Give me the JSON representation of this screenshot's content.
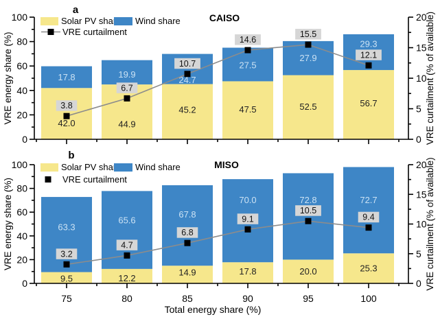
{
  "figure": {
    "panels": [
      "a",
      "b"
    ],
    "xlabel": "Total energy share (%)",
    "ylabel": "VRE energy share (%)",
    "y2label": "VRE curtailment (% of available)"
  },
  "colors": {
    "solar": "#F6E78C",
    "wind": "#3E86C6",
    "wind_label_text": "#CBE2F4",
    "solar_label_text": "#222222",
    "curtailment_line": "#8C8C8C",
    "curtailment_marker": "#000000",
    "curtailment_box_bg": "#D6D6D6",
    "axis": "#000000",
    "background": "#ffffff"
  },
  "chart_data": [
    {
      "type": "bar",
      "stacked": true,
      "panel_label": "a",
      "title": "CAISO",
      "categories": [
        75,
        80,
        85,
        90,
        95,
        100
      ],
      "series": [
        {
          "name": "Solar PV share",
          "values": [
            42.0,
            44.9,
            45.2,
            47.5,
            52.5,
            56.7
          ]
        },
        {
          "name": "Wind share",
          "values": [
            17.8,
            19.9,
            24.7,
            27.5,
            27.9,
            29.3
          ]
        }
      ],
      "line_series": {
        "name": "VRE curtailment",
        "axis": "y2",
        "values": [
          3.8,
          6.7,
          10.7,
          14.6,
          15.5,
          12.1
        ],
        "legend_marker": "line-square"
      },
      "ylabel": "VRE energy share (%)",
      "y2label": "VRE curtailment (% of available)",
      "xlabel": "",
      "ylim": [
        0,
        100
      ],
      "y2lim": [
        0,
        20
      ],
      "grid": false,
      "legend_position": "top-left",
      "show_x_tick_labels": false,
      "layout_hints": {
        "solar_label_dy": [
          14,
          18,
          -3,
          -1,
          -1,
          -2
        ],
        "wind_label_dy": [
          0,
          3,
          16,
          1,
          0,
          -12
        ]
      }
    },
    {
      "type": "bar",
      "stacked": true,
      "panel_label": "b",
      "title": "MISO",
      "categories": [
        75,
        80,
        85,
        90,
        95,
        100
      ],
      "series": [
        {
          "name": "Solar PV share",
          "values": [
            9.5,
            12.2,
            14.9,
            17.8,
            20.0,
            25.3
          ]
        },
        {
          "name": "Wind share",
          "values": [
            63.3,
            65.6,
            67.8,
            70.0,
            72.8,
            72.7
          ]
        }
      ],
      "line_series": {
        "name": "VRE curtailment",
        "axis": "y2",
        "values": [
          3.2,
          4.7,
          6.8,
          9.1,
          10.5,
          9.4
        ],
        "legend_marker": "square"
      },
      "ylabel": "VRE energy share (%)",
      "y2label": "VRE curtailment (% of available)",
      "xlabel": "Total energy share (%)",
      "ylim": [
        0,
        100
      ],
      "y2lim": [
        0,
        20
      ],
      "grid": false,
      "legend_position": "top-left",
      "show_x_tick_labels": true,
      "layout_hints": {
        "solar_label_dy": [
          1,
          3,
          -3,
          -2,
          0,
          0
        ],
        "wind_label_dy": [
          -11,
          -14,
          -16,
          -30,
          -24,
          -15
        ]
      }
    }
  ]
}
